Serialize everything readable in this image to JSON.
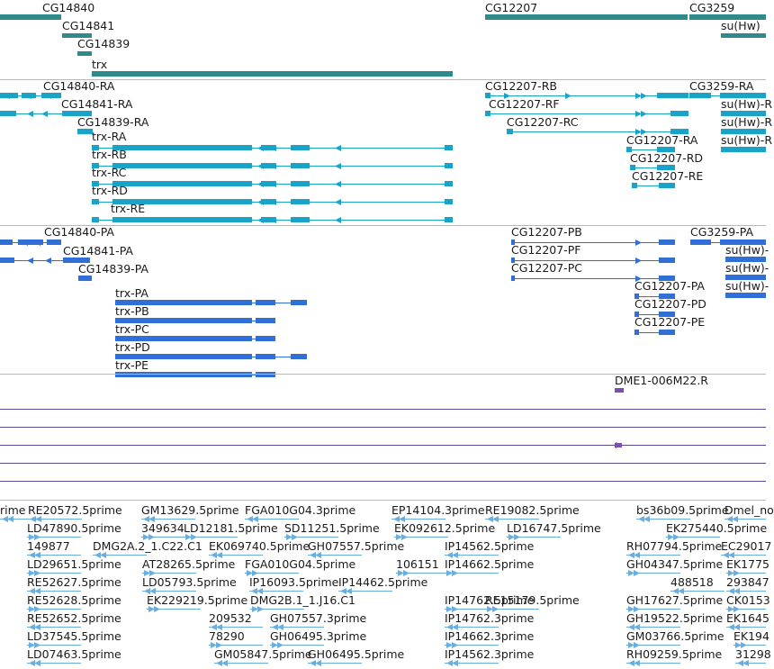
{
  "colors": {
    "gene": "#2e8b8b",
    "transcript": "#1aa3c8",
    "protein": "#2f6fd6",
    "clone": "#7a4fb0",
    "clone_line": "#5a4a9a",
    "est": "#6aaee0",
    "divider": "#b8b8b8"
  },
  "tracks": {
    "genes": [
      "CG14840",
      "CG14841",
      "CG14839",
      "trx",
      "CG12207",
      "CG3259",
      "su(Hw)"
    ],
    "transcripts": [
      "CG14840-RA",
      "CG14841-RA",
      "CG14839-RA",
      "trx-RA",
      "trx-RB",
      "trx-RC",
      "trx-RD",
      "trx-RE",
      "CG12207-RB",
      "CG12207-RF",
      "CG12207-RC",
      "CG12207-RA",
      "CG12207-RD",
      "CG12207-RE",
      "CG3259-RA",
      "su(Hw)-R",
      "su(Hw)-R",
      "su(Hw)-R"
    ],
    "proteins": [
      "CG14840-PA",
      "CG14841-PA",
      "CG14839-PA",
      "trx-PA",
      "trx-PB",
      "trx-PC",
      "trx-PD",
      "trx-PE",
      "CG12207-PB",
      "CG12207-PF",
      "CG12207-PC",
      "CG12207-PA",
      "CG12207-PD",
      "CG12207-PE",
      "CG3259-PA",
      "su(Hw)-",
      "su(Hw)-",
      "su(Hw)-"
    ],
    "clones": [
      "DME1-006M22.R"
    ],
    "ests": [
      [
        "rime",
        "RE20572.5prime",
        "GM13629.5prime",
        "FGA010G04.3prime",
        "EP14104.3prime",
        "RE19082.5prime",
        "bs36b09.5prime",
        "Dmel_no"
      ],
      [
        "LD47890.5prime",
        "349634",
        "LD12181.5prime",
        "SD11251.5prime",
        "EK092612.5prime",
        "LD16747.5prime",
        "EK275440.5prime"
      ],
      [
        "149877",
        "DMG2A.2_1.C22.C1",
        "EK069740.5prime",
        "GH07557.5prime",
        "IP14562.5prime",
        "RH07794.5prime",
        "EC29017"
      ],
      [
        "LD29651.5prime",
        "AT28265.5prime",
        "FGA010G04.5prime",
        "106151",
        "IP14662.5prime",
        "GH04347.5prime",
        "EK1775"
      ],
      [
        "RE52627.5prime",
        "LD05793.5prime",
        "IP16093.5prime",
        "IP14462.5prime",
        "488518",
        "293847"
      ],
      [
        "RE52628.5prime",
        "EK229219.5prime",
        "DMG2B.1_1.J16.C1",
        "IP14762.5prime",
        "RE15179.5prime",
        "GH17627.5prime",
        "CK0153"
      ],
      [
        "RE52652.5prime",
        "209532",
        "GH07557.3prime",
        "IP14762.3prime",
        "GH19522.5prime",
        "EK1645"
      ],
      [
        "LD37545.5prime",
        "78290",
        "GH06495.3prime",
        "IP14662.3prime",
        "GM03766.5prime",
        "EK194"
      ],
      [
        "LD07463.5prime",
        "GM05847.5prime",
        "GH06495.5prime",
        "IP14562.3prime",
        "RH09259.5prime",
        "31298"
      ]
    ]
  }
}
